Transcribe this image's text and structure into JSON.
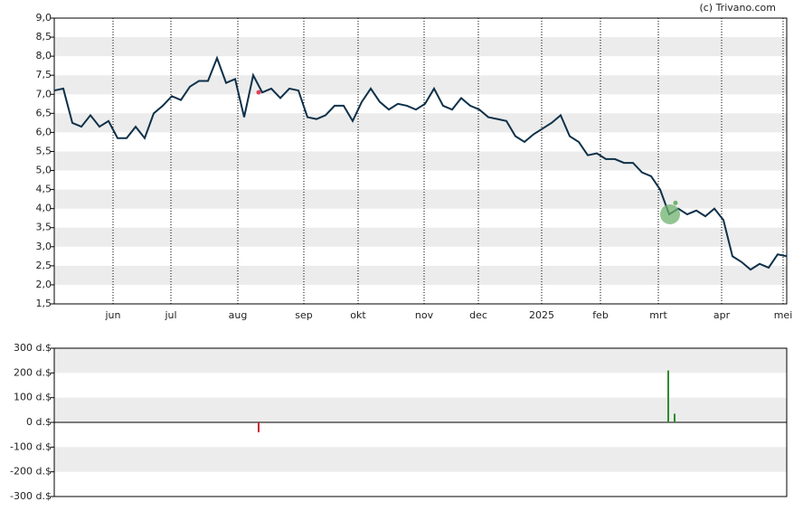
{
  "source": "(c) Trivano.com",
  "chart_data": [
    {
      "type": "line",
      "color": "#0d3049",
      "xlim": [
        0,
        81
      ],
      "xticks": [
        {
          "value": 6.5,
          "label": "jun"
        },
        {
          "value": 12.9,
          "label": "jul"
        },
        {
          "value": 20.3,
          "label": "aug"
        },
        {
          "value": 27.6,
          "label": "sep"
        },
        {
          "value": 33.6,
          "label": "okt"
        },
        {
          "value": 40.9,
          "label": "nov"
        },
        {
          "value": 46.9,
          "label": "dec"
        },
        {
          "value": 53.9,
          "label": "2025"
        },
        {
          "value": 60.4,
          "label": "feb"
        },
        {
          "value": 66.8,
          "label": "mrt"
        },
        {
          "value": 73.8,
          "label": "apr"
        },
        {
          "value": 80.6,
          "label": "mei"
        }
      ],
      "ylim": [
        1.5,
        9
      ],
      "yticks": [
        {
          "value": 9,
          "label": "9,0"
        },
        {
          "value": 8.5,
          "label": "8,5"
        },
        {
          "value": 8,
          "label": "8,0"
        },
        {
          "value": 7.5,
          "label": "7,5"
        },
        {
          "value": 7,
          "label": "7,0"
        },
        {
          "value": 6.5,
          "label": "6,5"
        },
        {
          "value": 6,
          "label": "6,0"
        },
        {
          "value": 5.5,
          "label": "5,5"
        },
        {
          "value": 5,
          "label": "5,0"
        },
        {
          "value": 4.5,
          "label": "4,5"
        },
        {
          "value": 4,
          "label": "4,0"
        },
        {
          "value": 3.5,
          "label": "3,5"
        },
        {
          "value": 3,
          "label": "3,0"
        },
        {
          "value": 2.5,
          "label": "2,5"
        },
        {
          "value": 2,
          "label": "2,0"
        },
        {
          "value": 1.5,
          "label": "1,5"
        }
      ],
      "values": [
        7.1,
        7.15,
        6.25,
        6.15,
        6.45,
        6.15,
        6.3,
        5.85,
        5.85,
        6.15,
        5.85,
        6.5,
        6.7,
        6.95,
        6.85,
        7.2,
        7.35,
        7.35,
        7.95,
        7.3,
        7.4,
        6.4,
        7.5,
        7.05,
        7.15,
        6.9,
        7.15,
        7.1,
        6.4,
        6.35,
        6.45,
        6.7,
        6.7,
        6.3,
        6.8,
        7.15,
        6.8,
        6.6,
        6.75,
        6.7,
        6.6,
        6.75,
        7.15,
        6.7,
        6.6,
        6.9,
        6.7,
        6.6,
        6.4,
        6.35,
        6.3,
        5.9,
        5.75,
        5.95,
        6.1,
        6.25,
        6.45,
        5.9,
        5.75,
        5.4,
        5.45,
        5.3,
        5.3,
        5.2,
        5.2,
        4.95,
        4.85,
        4.5,
        3.85,
        4.0,
        3.85,
        3.95,
        3.8,
        4.0,
        3.7,
        2.75,
        2.6,
        2.4,
        2.55,
        2.45,
        2.8,
        2.75
      ],
      "markers": [
        {
          "x": 22.6,
          "value": 7.05,
          "color": "#e0405a"
        },
        {
          "x": 68.7,
          "value": 4.15,
          "color": "#6fb26f"
        }
      ],
      "highlight": {
        "x": 68.1,
        "value": 3.85,
        "color": "#6fb26f"
      }
    },
    {
      "type": "bar",
      "xlim": [
        0,
        81
      ],
      "ylim": [
        -300,
        300
      ],
      "yticks": [
        {
          "value": 300,
          "label": "300 d.$"
        },
        {
          "value": 200,
          "label": "200 d.$"
        },
        {
          "value": 100,
          "label": "100 d.$"
        },
        {
          "value": 0,
          "label": "0 d.$"
        },
        {
          "value": -100,
          "label": "-100 d.$"
        },
        {
          "value": -200,
          "label": "-200 d.$"
        },
        {
          "value": -300,
          "label": "-300 d.$"
        }
      ],
      "x": [
        22.6,
        67.9,
        68.6
      ],
      "values": [
        -40,
        210,
        35
      ],
      "colors": [
        "#cc2233",
        "#2e8b2e",
        "#2e8b2e"
      ]
    }
  ]
}
